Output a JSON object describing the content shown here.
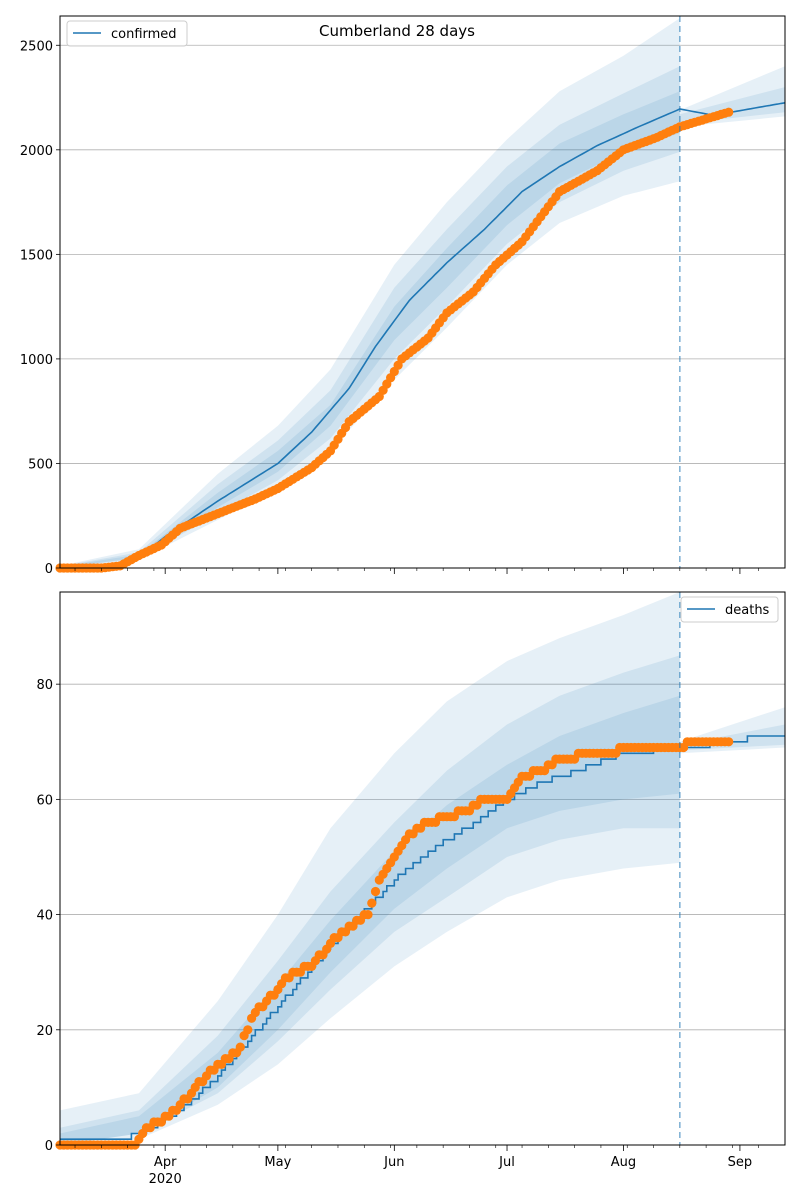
{
  "figure": {
    "title": "Cumberland 28 days"
  },
  "colors": {
    "model": "#1f77b4",
    "observed": "#ff7f0e",
    "band": "#1f77b4",
    "grid": "#b0b0b0",
    "axis": "#000000"
  },
  "x_axis": {
    "start": "2020-03-04",
    "end": "2020-09-13",
    "tick_labels": [
      {
        "date": "2020-04-01",
        "label": "Apr"
      },
      {
        "date": "2020-05-01",
        "label": "May"
      },
      {
        "date": "2020-06-01",
        "label": "Jun"
      },
      {
        "date": "2020-07-01",
        "label": "Jul"
      },
      {
        "date": "2020-08-01",
        "label": "Aug"
      },
      {
        "date": "2020-09-01",
        "label": "Sep"
      }
    ],
    "year_label": "2020",
    "forecast_date": "2020-08-16"
  },
  "chart_data": [
    {
      "type": "line",
      "series_name": "confirmed",
      "legend_location": "top-left",
      "ylim": [
        0,
        2640
      ],
      "yticks": [
        0,
        500,
        1000,
        1500,
        2000,
        2500
      ],
      "grid": "y",
      "model_line": [
        [
          "2020-03-04",
          0
        ],
        [
          "2020-03-18",
          5
        ],
        [
          "2020-03-25",
          50
        ],
        [
          "2020-04-01",
          150
        ],
        [
          "2020-04-15",
          320
        ],
        [
          "2020-05-01",
          500
        ],
        [
          "2020-05-10",
          650
        ],
        [
          "2020-05-20",
          860
        ],
        [
          "2020-05-27",
          1060
        ],
        [
          "2020-06-05",
          1280
        ],
        [
          "2020-06-15",
          1460
        ],
        [
          "2020-06-25",
          1620
        ],
        [
          "2020-07-05",
          1800
        ],
        [
          "2020-07-15",
          1920
        ],
        [
          "2020-07-25",
          2020
        ],
        [
          "2020-08-05",
          2110
        ],
        [
          "2020-08-16",
          2195
        ],
        [
          "2020-08-25",
          2165
        ],
        [
          "2020-09-05",
          2200
        ],
        [
          "2020-09-13",
          2225
        ]
      ],
      "bands": [
        {
          "lower": [
            [
              "2020-03-04",
              0
            ],
            [
              "2020-03-25",
              40
            ],
            [
              "2020-04-15",
              230
            ],
            [
              "2020-05-01",
              380
            ],
            [
              "2020-05-15",
              560
            ],
            [
              "2020-06-01",
              900
            ],
            [
              "2020-06-15",
              1150
            ],
            [
              "2020-07-01",
              1450
            ],
            [
              "2020-07-15",
              1650
            ],
            [
              "2020-08-01",
              1780
            ],
            [
              "2020-08-16",
              1850
            ]
          ],
          "upper": [
            [
              "2020-03-04",
              10
            ],
            [
              "2020-03-25",
              90
            ],
            [
              "2020-04-15",
              450
            ],
            [
              "2020-05-01",
              680
            ],
            [
              "2020-05-15",
              950
            ],
            [
              "2020-06-01",
              1450
            ],
            [
              "2020-06-15",
              1750
            ],
            [
              "2020-07-01",
              2050
            ],
            [
              "2020-07-15",
              2280
            ],
            [
              "2020-08-01",
              2450
            ],
            [
              "2020-08-16",
              2630
            ]
          ]
        },
        {
          "lower": [
            [
              "2020-03-04",
              0
            ],
            [
              "2020-03-25",
              45
            ],
            [
              "2020-04-15",
              260
            ],
            [
              "2020-05-01",
              420
            ],
            [
              "2020-05-15",
              620
            ],
            [
              "2020-06-01",
              1000
            ],
            [
              "2020-06-15",
              1250
            ],
            [
              "2020-07-01",
              1550
            ],
            [
              "2020-07-15",
              1750
            ],
            [
              "2020-08-01",
              1900
            ],
            [
              "2020-08-16",
              1990
            ]
          ],
          "upper": [
            [
              "2020-03-04",
              8
            ],
            [
              "2020-03-25",
              75
            ],
            [
              "2020-04-15",
              400
            ],
            [
              "2020-05-01",
              610
            ],
            [
              "2020-05-15",
              850
            ],
            [
              "2020-06-01",
              1340
            ],
            [
              "2020-06-15",
              1620
            ],
            [
              "2020-07-01",
              1920
            ],
            [
              "2020-07-15",
              2120
            ],
            [
              "2020-08-01",
              2270
            ],
            [
              "2020-08-16",
              2400
            ]
          ]
        },
        {
          "lower": [
            [
              "2020-03-04",
              0
            ],
            [
              "2020-03-25",
              50
            ],
            [
              "2020-04-15",
              290
            ],
            [
              "2020-05-01",
              460
            ],
            [
              "2020-05-15",
              680
            ],
            [
              "2020-06-01",
              1090
            ],
            [
              "2020-06-15",
              1340
            ],
            [
              "2020-07-01",
              1640
            ],
            [
              "2020-07-15",
              1840
            ],
            [
              "2020-08-01",
              1990
            ],
            [
              "2020-08-16",
              2080
            ]
          ],
          "upper": [
            [
              "2020-03-04",
              6
            ],
            [
              "2020-03-25",
              65
            ],
            [
              "2020-04-15",
              360
            ],
            [
              "2020-05-01",
              560
            ],
            [
              "2020-05-15",
              780
            ],
            [
              "2020-06-01",
              1250
            ],
            [
              "2020-06-15",
              1530
            ],
            [
              "2020-07-01",
              1830
            ],
            [
              "2020-07-15",
              2030
            ],
            [
              "2020-08-01",
              2170
            ],
            [
              "2020-08-16",
              2280
            ]
          ]
        },
        {
          "lower": [
            [
              "2020-08-16",
              2110
            ],
            [
              "2020-09-13",
              2160
            ]
          ],
          "upper": [
            [
              "2020-08-16",
              2190
            ],
            [
              "2020-09-13",
              2400
            ]
          ]
        },
        {
          "lower": [
            [
              "2020-08-16",
              2125
            ],
            [
              "2020-09-13",
              2180
            ]
          ],
          "upper": [
            [
              "2020-08-16",
              2170
            ],
            [
              "2020-09-13",
              2300
            ]
          ]
        }
      ],
      "observed_anchors": [
        [
          "2020-03-04",
          0
        ],
        [
          "2020-03-15",
          0
        ],
        [
          "2020-03-20",
          10
        ],
        [
          "2020-03-25",
          60
        ],
        [
          "2020-03-31",
          110
        ],
        [
          "2020-04-05",
          190
        ],
        [
          "2020-04-15",
          260
        ],
        [
          "2020-04-25",
          330
        ],
        [
          "2020-05-01",
          380
        ],
        [
          "2020-05-10",
          480
        ],
        [
          "2020-05-15",
          560
        ],
        [
          "2020-05-20",
          700
        ],
        [
          "2020-05-28",
          820
        ],
        [
          "2020-06-03",
          1000
        ],
        [
          "2020-06-10",
          1100
        ],
        [
          "2020-06-15",
          1220
        ],
        [
          "2020-06-22",
          1320
        ],
        [
          "2020-06-28",
          1450
        ],
        [
          "2020-07-05",
          1560
        ],
        [
          "2020-07-15",
          1800
        ],
        [
          "2020-07-25",
          1900
        ],
        [
          "2020-08-01",
          2000
        ],
        [
          "2020-08-10",
          2060
        ],
        [
          "2020-08-16",
          2110
        ],
        [
          "2020-08-29",
          2180
        ]
      ]
    },
    {
      "type": "line",
      "series_name": "deaths",
      "legend_location": "top-right",
      "ylim": [
        0,
        96
      ],
      "yticks": [
        0,
        20,
        40,
        60,
        80
      ],
      "grid": "y",
      "model_line": [
        [
          "2020-03-04",
          1
        ],
        [
          "2020-03-20",
          1
        ],
        [
          "2020-03-25",
          2
        ],
        [
          "2020-03-28",
          3
        ],
        [
          "2020-04-05",
          6
        ],
        [
          "2020-04-15",
          12
        ],
        [
          "2020-05-01",
          24
        ],
        [
          "2020-05-10",
          31
        ],
        [
          "2020-05-20",
          38
        ],
        [
          "2020-06-01",
          46
        ],
        [
          "2020-06-10",
          51
        ],
        [
          "2020-06-20",
          55
        ],
        [
          "2020-07-01",
          60
        ],
        [
          "2020-07-10",
          63
        ],
        [
          "2020-07-20",
          65
        ],
        [
          "2020-08-01",
          68
        ],
        [
          "2020-08-16",
          69
        ],
        [
          "2020-08-31",
          70
        ],
        [
          "2020-09-05",
          71
        ],
        [
          "2020-09-13",
          71
        ]
      ],
      "bands": [
        {
          "lower": [
            [
              "2020-03-04",
              0
            ],
            [
              "2020-03-25",
              1
            ],
            [
              "2020-04-15",
              7
            ],
            [
              "2020-05-01",
              14
            ],
            [
              "2020-05-15",
              22
            ],
            [
              "2020-06-01",
              31
            ],
            [
              "2020-06-15",
              37
            ],
            [
              "2020-07-01",
              43
            ],
            [
              "2020-07-15",
              46
            ],
            [
              "2020-08-01",
              48
            ],
            [
              "2020-08-16",
              49
            ]
          ],
          "upper": [
            [
              "2020-03-04",
              6
            ],
            [
              "2020-03-25",
              9
            ],
            [
              "2020-04-15",
              25
            ],
            [
              "2020-05-01",
              40
            ],
            [
              "2020-05-15",
              55
            ],
            [
              "2020-06-01",
              68
            ],
            [
              "2020-06-15",
              77
            ],
            [
              "2020-07-01",
              84
            ],
            [
              "2020-07-15",
              88
            ],
            [
              "2020-08-01",
              92
            ],
            [
              "2020-08-16",
              96
            ]
          ]
        },
        {
          "lower": [
            [
              "2020-03-04",
              0
            ],
            [
              "2020-03-25",
              2
            ],
            [
              "2020-04-15",
              9
            ],
            [
              "2020-05-01",
              18
            ],
            [
              "2020-05-15",
              27
            ],
            [
              "2020-06-01",
              37
            ],
            [
              "2020-06-15",
              43
            ],
            [
              "2020-07-01",
              50
            ],
            [
              "2020-07-15",
              53
            ],
            [
              "2020-08-01",
              55
            ],
            [
              "2020-08-16",
              55
            ]
          ],
          "upper": [
            [
              "2020-03-04",
              3
            ],
            [
              "2020-03-25",
              6
            ],
            [
              "2020-04-15",
              19
            ],
            [
              "2020-05-01",
              32
            ],
            [
              "2020-05-15",
              44
            ],
            [
              "2020-06-01",
              56
            ],
            [
              "2020-06-15",
              65
            ],
            [
              "2020-07-01",
              73
            ],
            [
              "2020-07-15",
              78
            ],
            [
              "2020-08-01",
              82
            ],
            [
              "2020-08-16",
              85
            ]
          ]
        },
        {
          "lower": [
            [
              "2020-03-04",
              0
            ],
            [
              "2020-03-25",
              2
            ],
            [
              "2020-04-15",
              10
            ],
            [
              "2020-05-01",
              20
            ],
            [
              "2020-05-15",
              30
            ],
            [
              "2020-06-01",
              41
            ],
            [
              "2020-06-15",
              48
            ],
            [
              "2020-07-01",
              55
            ],
            [
              "2020-07-15",
              58
            ],
            [
              "2020-08-01",
              60
            ],
            [
              "2020-08-16",
              61
            ]
          ],
          "upper": [
            [
              "2020-03-04",
              2
            ],
            [
              "2020-03-25",
              5
            ],
            [
              "2020-04-15",
              16
            ],
            [
              "2020-05-01",
              28
            ],
            [
              "2020-05-15",
              39
            ],
            [
              "2020-06-01",
              51
            ],
            [
              "2020-06-15",
              59
            ],
            [
              "2020-07-01",
              66
            ],
            [
              "2020-07-15",
              71
            ],
            [
              "2020-08-01",
              75
            ],
            [
              "2020-08-16",
              78
            ]
          ]
        },
        {
          "lower": [
            [
              "2020-08-16",
              68
            ],
            [
              "2020-09-13",
              69
            ]
          ],
          "upper": [
            [
              "2020-08-16",
              70
            ],
            [
              "2020-09-13",
              76
            ]
          ]
        },
        {
          "lower": [
            [
              "2020-08-16",
              68.5
            ],
            [
              "2020-09-13",
              69.5
            ]
          ],
          "upper": [
            [
              "2020-08-16",
              69.5
            ],
            [
              "2020-09-13",
              73
            ]
          ]
        }
      ],
      "observed_anchors": [
        [
          "2020-03-04",
          0
        ],
        [
          "2020-03-24",
          0
        ],
        [
          "2020-03-25",
          1
        ],
        [
          "2020-03-27",
          3
        ],
        [
          "2020-04-02",
          5
        ],
        [
          "2020-04-08",
          9
        ],
        [
          "2020-04-12",
          12
        ],
        [
          "2020-04-20",
          16
        ],
        [
          "2020-04-25",
          23
        ],
        [
          "2020-05-01",
          27
        ],
        [
          "2020-05-05",
          30
        ],
        [
          "2020-05-10",
          31
        ],
        [
          "2020-05-15",
          35
        ],
        [
          "2020-05-20",
          38
        ],
        [
          "2020-05-25",
          40
        ],
        [
          "2020-05-28",
          46
        ],
        [
          "2020-06-01",
          50
        ],
        [
          "2020-06-05",
          54
        ],
        [
          "2020-06-10",
          56
        ],
        [
          "2020-06-15",
          57
        ],
        [
          "2020-06-20",
          58
        ],
        [
          "2020-06-25",
          60
        ],
        [
          "2020-07-01",
          60
        ],
        [
          "2020-07-05",
          64
        ],
        [
          "2020-07-10",
          65
        ],
        [
          "2020-07-15",
          67
        ],
        [
          "2020-07-25",
          68
        ],
        [
          "2020-08-05",
          69
        ],
        [
          "2020-08-16",
          69
        ],
        [
          "2020-08-20",
          70
        ],
        [
          "2020-08-29",
          70
        ]
      ]
    }
  ]
}
